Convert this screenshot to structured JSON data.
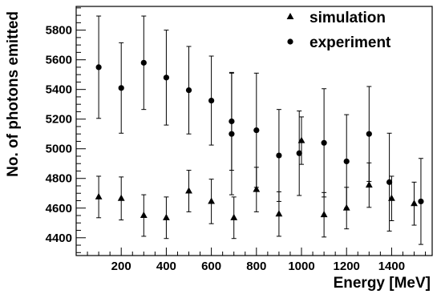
{
  "chart_data": {
    "type": "scatter",
    "xlabel": "Energy [MeV]",
    "ylabel": "No. of photons emitted",
    "xlim": [
      0,
      1580
    ],
    "ylim": [
      4280,
      5960
    ],
    "x_ticks": [
      200,
      400,
      600,
      800,
      1000,
      1200,
      1400
    ],
    "y_ticks": [
      4400,
      4600,
      4800,
      5000,
      5200,
      5400,
      5600,
      5800
    ],
    "grid": false,
    "legend_position": "top-right",
    "series": [
      {
        "name": "simulation",
        "marker": "triangle",
        "color": "#000000",
        "points": [
          {
            "x": 100,
            "y": 4675,
            "err": 140
          },
          {
            "x": 200,
            "y": 4665,
            "err": 145
          },
          {
            "x": 300,
            "y": 4550,
            "err": 140
          },
          {
            "x": 400,
            "y": 4535,
            "err": 140
          },
          {
            "x": 500,
            "y": 4715,
            "err": 140
          },
          {
            "x": 600,
            "y": 4645,
            "err": 150
          },
          {
            "x": 700,
            "y": 4535,
            "err": 140
          },
          {
            "x": 800,
            "y": 4725,
            "err": 150
          },
          {
            "x": 900,
            "y": 4560,
            "err": 150
          },
          {
            "x": 1000,
            "y": 5055,
            "err": 160
          },
          {
            "x": 1100,
            "y": 4555,
            "err": 150
          },
          {
            "x": 1200,
            "y": 4600,
            "err": 140
          },
          {
            "x": 1300,
            "y": 4755,
            "err": 150
          },
          {
            "x": 1400,
            "y": 4665,
            "err": 150
          },
          {
            "x": 1500,
            "y": 4630,
            "err": 145
          }
        ]
      },
      {
        "name": "experiment",
        "marker": "circle",
        "color": "#000000",
        "points": [
          {
            "x": 100,
            "y": 5550,
            "err": 345
          },
          {
            "x": 200,
            "y": 5410,
            "err": 305
          },
          {
            "x": 300,
            "y": 5580,
            "err": 315
          },
          {
            "x": 400,
            "y": 5480,
            "err": 320
          },
          {
            "x": 500,
            "y": 5395,
            "err": 295
          },
          {
            "x": 600,
            "y": 5325,
            "err": 300
          },
          {
            "x": 690,
            "y": 5185,
            "err": 330
          },
          {
            "x": 690,
            "y": 5100,
            "err": 410
          },
          {
            "x": 800,
            "y": 5125,
            "err": 385
          },
          {
            "x": 900,
            "y": 4955,
            "err": 310
          },
          {
            "x": 990,
            "y": 4970,
            "err": 285
          },
          {
            "x": 1100,
            "y": 5040,
            "err": 365
          },
          {
            "x": 1200,
            "y": 4915,
            "err": 315
          },
          {
            "x": 1300,
            "y": 5100,
            "err": 320
          },
          {
            "x": 1390,
            "y": 4775,
            "err": 330
          },
          {
            "x": 1530,
            "y": 4645,
            "err": 290
          }
        ]
      }
    ]
  }
}
